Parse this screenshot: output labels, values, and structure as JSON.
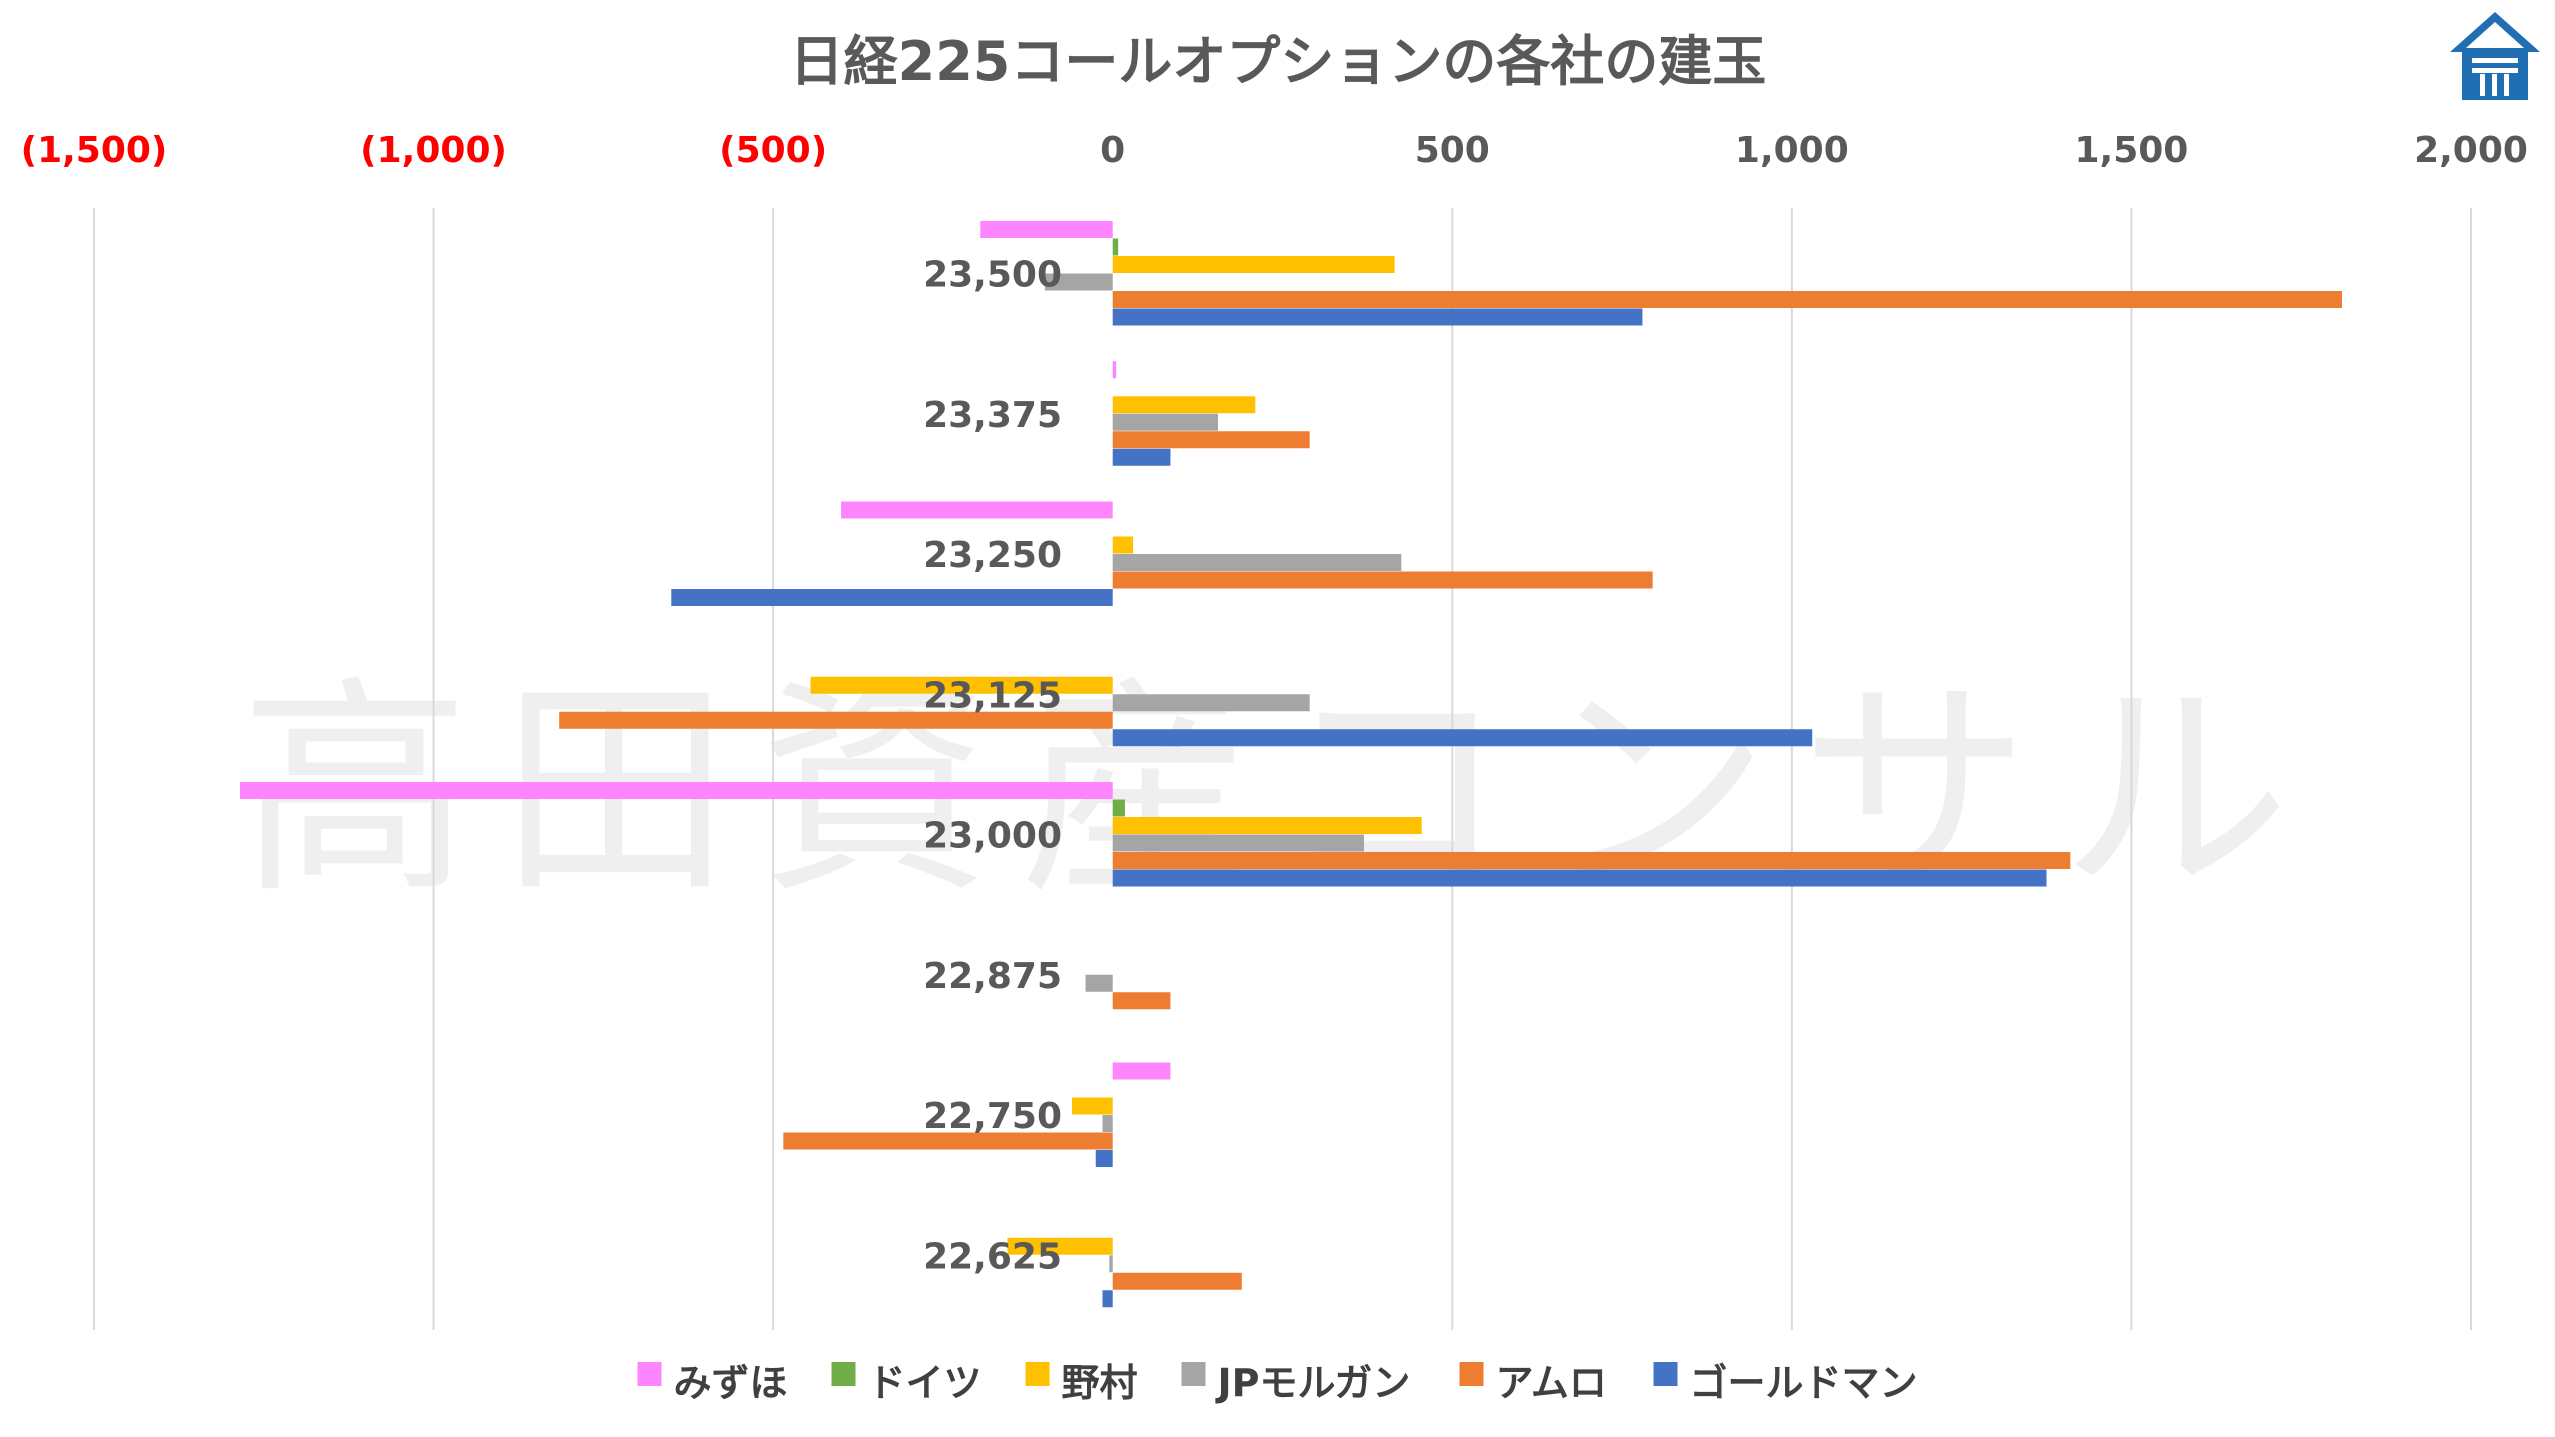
{
  "chart_data": {
    "type": "bar",
    "orientation": "horizontal",
    "title": "日経225コールオプションの各社の建玉",
    "categories": [
      "23,500",
      "23,375",
      "23,250",
      "23,125",
      "23,000",
      "22,875",
      "22,750",
      "22,625"
    ],
    "xlim": [
      -1500,
      2000
    ],
    "x_ticks": [
      -1500,
      -1000,
      -500,
      0,
      500,
      1000,
      1500,
      2000
    ],
    "x_tick_labels": [
      "(1,500)",
      "(1,000)",
      "(500)",
      "0",
      "500",
      "1,000",
      "1,500",
      "2,000"
    ],
    "negative_tick_color": "#FF0000",
    "positive_tick_color": "#595959",
    "grid": true,
    "legend_position": "bottom",
    "series": [
      {
        "name": "みずほ",
        "color": "#FF85FF",
        "values": [
          -195,
          5,
          -400,
          0,
          -1285,
          0,
          85,
          0
        ]
      },
      {
        "name": "ドイツ",
        "color": "#70AD47",
        "values": [
          8,
          0,
          0,
          0,
          18,
          0,
          0,
          0
        ]
      },
      {
        "name": "野村",
        "color": "#FFC000",
        "values": [
          415,
          210,
          30,
          -445,
          455,
          0,
          -60,
          -155
        ]
      },
      {
        "name": "JPモルガン",
        "color": "#A5A5A5",
        "values": [
          -100,
          155,
          425,
          290,
          370,
          -40,
          -15,
          -5
        ]
      },
      {
        "name": "アムロ",
        "color": "#ED7D31",
        "values": [
          1810,
          290,
          795,
          -815,
          1410,
          85,
          -485,
          190
        ]
      },
      {
        "name": "ゴールドマン",
        "color": "#4472C4",
        "values": [
          780,
          85,
          -650,
          1030,
          1375,
          0,
          -25,
          -15
        ]
      }
    ]
  },
  "watermark": "高田資産コンサル",
  "logo": "house-logo-icon"
}
